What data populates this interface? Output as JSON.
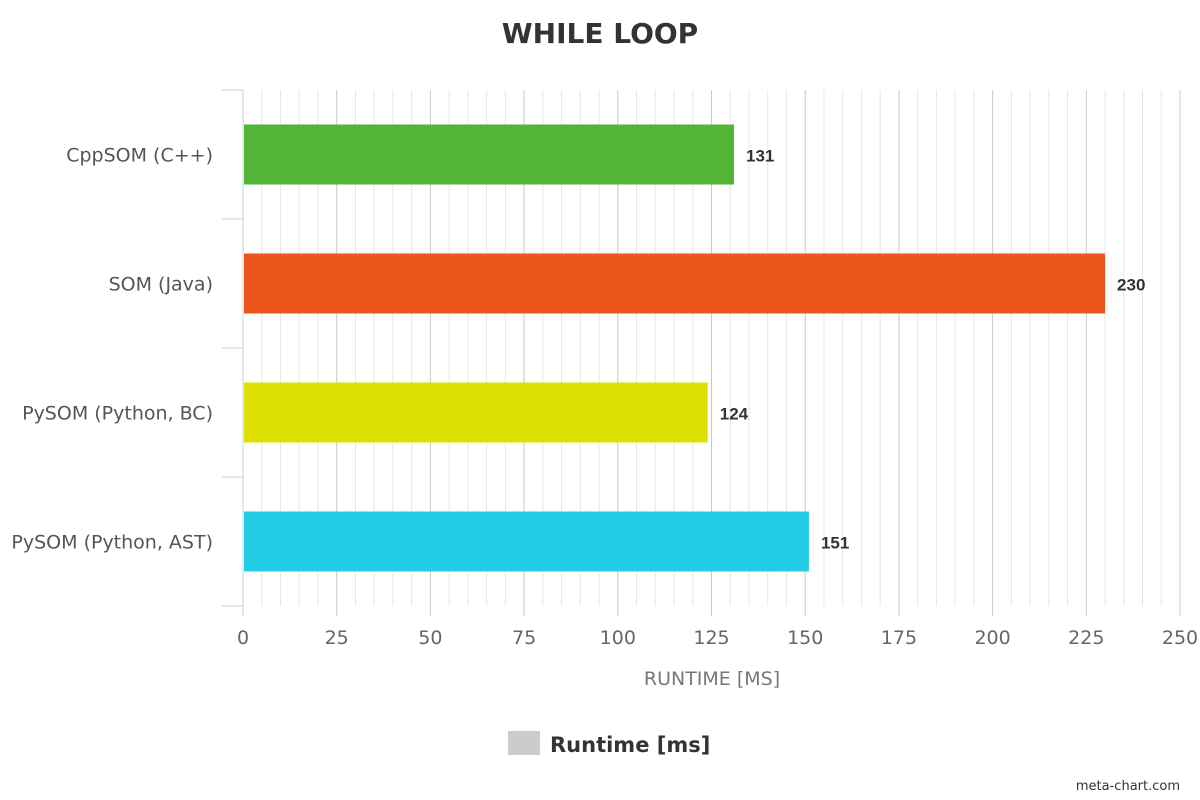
{
  "chart_data": {
    "type": "bar",
    "orientation": "horizontal",
    "title": "WHILE LOOP",
    "xlabel": "RUNTIME [MS]",
    "ylabel": "",
    "categories": [
      "CppSOM (C++)",
      "SOM (Java)",
      "PySOM (Python, BC)",
      "PySOM (Python, AST)"
    ],
    "series": [
      {
        "name": "Runtime [ms]",
        "values": [
          131,
          230,
          124,
          151
        ],
        "colors": [
          "#52b535",
          "#ec561b",
          "#dde000",
          "#24cbe5"
        ]
      }
    ],
    "xlim": [
      0,
      250
    ],
    "xticks": [
      0,
      25,
      50,
      75,
      100,
      125,
      150,
      175,
      200,
      225,
      250
    ],
    "minor_grid_step": 5,
    "grid": true,
    "data_labels": true,
    "legend": {
      "placement": "bottom-center",
      "label": "Runtime [ms]",
      "swatch_color": "#cccccc"
    }
  },
  "credit": "meta-chart.com"
}
